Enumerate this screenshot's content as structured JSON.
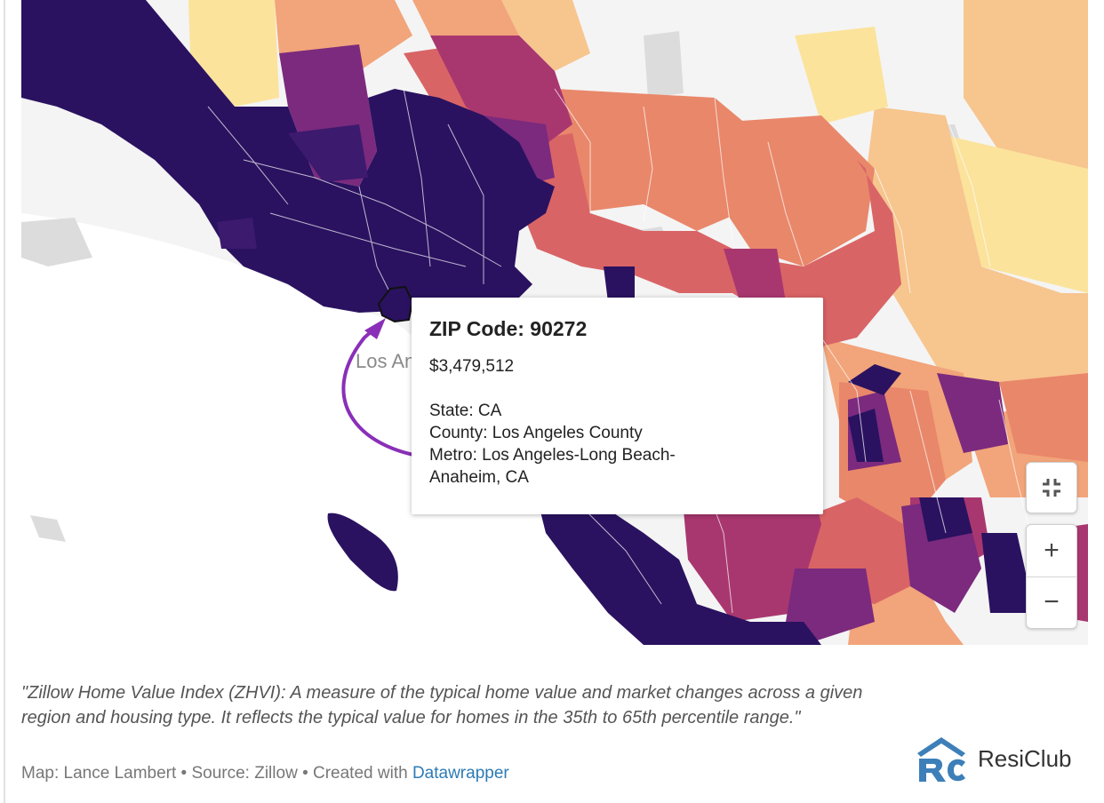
{
  "map": {
    "city_label": "Los Angeles",
    "colors": {
      "darkest": "#2a1260",
      "dark": "#3c1a6e",
      "purple": "#7b2a7e",
      "magenta": "#a9376f",
      "red": "#d96466",
      "orange": "#e9876a",
      "light_orange": "#f2a47a",
      "peach": "#f7c58e",
      "yellow": "#fbe39c",
      "no_data": "#dcdcdc",
      "ocean": "#ffffff",
      "highlight_arrow": "#8a2fb8"
    }
  },
  "tooltip": {
    "title": "ZIP Code: 90272",
    "value": "$3,479,512",
    "state": "State: CA",
    "county": "County: Los Angeles County",
    "metro_1": "Metro: Los Angeles-Long Beach-",
    "metro_2": "Anaheim, CA"
  },
  "controls": {
    "fullscreen_icon": "fullscreen-exit-icon",
    "zoom_in": "+",
    "zoom_out": "−"
  },
  "caption": "\"Zillow Home Value Index (ZHVI): A measure of the typical home value and market changes across a given region and housing type. It reflects the typical value for homes in the 35th to 65th percentile range.\"",
  "credits": {
    "prefix": "Map: Lance Lambert • Source: Zillow • Created with ",
    "link": "Datawrapper"
  },
  "brand": {
    "name": "ResiClub",
    "logo_color": "#3d7fb8"
  }
}
